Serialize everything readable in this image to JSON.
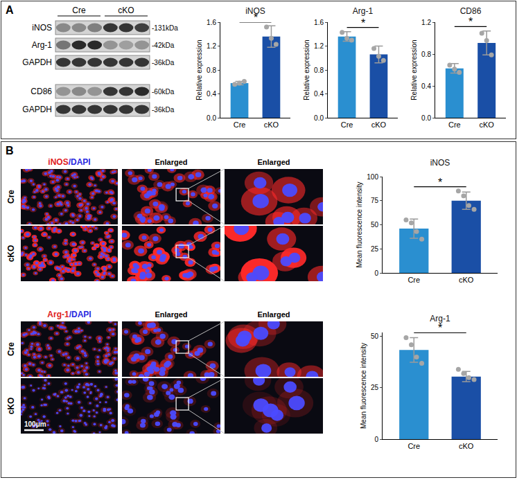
{
  "chart_data": [
    {
      "type": "bar",
      "title": "iNOS",
      "categories": [
        "Cre",
        "cKO"
      ],
      "values": [
        0.58,
        1.36
      ],
      "errors": [
        0.03,
        0.18
      ],
      "points": [
        [
          0.56,
          0.58,
          0.61
        ],
        [
          1.52,
          1.33,
          1.23
        ]
      ],
      "colors": [
        "#2a8fd0",
        "#1a4fa6"
      ],
      "y_label": "Relative expression",
      "ylim": [
        0,
        1.6
      ],
      "yticks": [
        {
          "value": 0,
          "label": "0.0"
        },
        {
          "value": 0.4,
          "label": "0.4"
        },
        {
          "value": 0.8,
          "label": "0.8"
        },
        {
          "value": 1.2,
          "label": "1.2"
        },
        {
          "value": 1.6,
          "label": "1.6"
        }
      ],
      "annotations": [
        "*"
      ]
    },
    {
      "type": "bar",
      "title": "Arg-1",
      "categories": [
        "Cre",
        "cKO"
      ],
      "values": [
        1.36,
        1.06
      ],
      "errors": [
        0.08,
        0.14
      ],
      "points": [
        [
          1.43,
          1.33,
          1.3
        ],
        [
          1.16,
          1.03,
          0.96
        ]
      ],
      "colors": [
        "#2a8fd0",
        "#1a4fa6"
      ],
      "y_label": "Relative expression",
      "ylim": [
        0,
        1.6
      ],
      "yticks": [
        {
          "value": 0,
          "label": "0.0"
        },
        {
          "value": 0.4,
          "label": "0.4"
        },
        {
          "value": 0.8,
          "label": "0.8"
        },
        {
          "value": 1.2,
          "label": "1.2"
        },
        {
          "value": 1.6,
          "label": "1.6"
        }
      ],
      "annotations": [
        "*"
      ]
    },
    {
      "type": "bar",
      "title": "CD86",
      "categories": [
        "Cre",
        "cKO"
      ],
      "values": [
        0.62,
        0.94
      ],
      "errors": [
        0.06,
        0.15
      ],
      "points": [
        [
          0.66,
          0.61,
          0.57
        ],
        [
          1.06,
          0.97,
          0.79
        ]
      ],
      "colors": [
        "#2a8fd0",
        "#1a4fa6"
      ],
      "y_label": "Relative expression",
      "ylim": [
        0,
        1.2
      ],
      "yticks": [
        {
          "value": 0,
          "label": "0.0"
        },
        {
          "value": 0.4,
          "label": "0.4"
        },
        {
          "value": 0.8,
          "label": "0.8"
        },
        {
          "value": 1.2,
          "label": "1.2"
        }
      ],
      "annotations": [
        "*"
      ]
    },
    {
      "type": "bar",
      "title": "iNOS",
      "categories": [
        "Cre",
        "cKO"
      ],
      "values": [
        46,
        75
      ],
      "errors": [
        10,
        9
      ],
      "points": [
        [
          55,
          52,
          43,
          35
        ],
        [
          85,
          80,
          70,
          66
        ]
      ],
      "colors": [
        "#2a8fd0",
        "#1a4fa6"
      ],
      "y_label": "Mean fluorescence intensity",
      "ylim": [
        0,
        100
      ],
      "yticks": [
        0,
        25,
        50,
        75,
        100
      ],
      "annotations": [
        "*"
      ]
    },
    {
      "type": "bar",
      "title": "Arg-1",
      "categories": [
        "Cre",
        "cKO"
      ],
      "values": [
        43.5,
        30.5
      ],
      "errors": [
        6,
        2.5
      ],
      "points": [
        [
          49.5,
          46,
          40,
          37
        ],
        [
          34,
          32,
          30,
          29
        ]
      ],
      "colors": [
        "#2a8fd0",
        "#1a4fa6"
      ],
      "y_label": "Mean fluorescence intensity",
      "ylim": [
        0,
        52
      ],
      "yticks": [
        0,
        25,
        50
      ],
      "annotations": [
        "*"
      ]
    }
  ],
  "figure": {
    "letters": [
      "A",
      "B"
    ],
    "blot": {
      "groups": [
        "Cre",
        "cKO"
      ],
      "rows": [
        {
          "label": "iNOS",
          "size": "-131kDa"
        },
        {
          "label": "Arg-1",
          "size": "-42kDa"
        },
        {
          "label": "GAPDH",
          "size": "-36kDa"
        },
        {
          "label": "CD86",
          "size": "-60kDa"
        },
        {
          "label": "GAPDH",
          "size": "-36kDa"
        }
      ]
    },
    "images": {
      "conditions": [
        "Cre",
        "cKO"
      ],
      "stains": [
        "iNOS/DAPI",
        "Arg-1/DAPI"
      ],
      "column_heads": [
        "Enlarged",
        "Enlarged"
      ],
      "scale_bar": "100μm"
    }
  }
}
